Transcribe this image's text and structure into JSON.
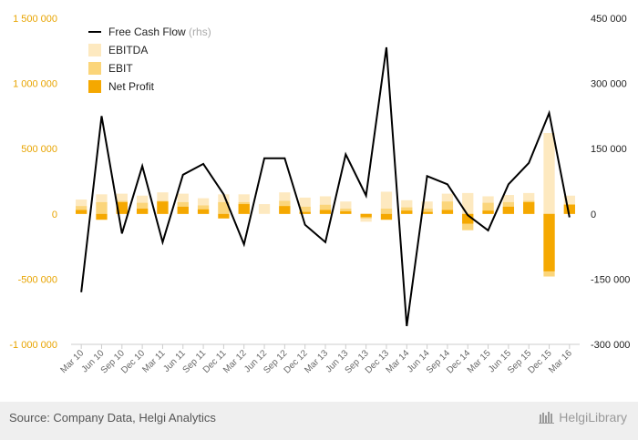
{
  "chart_data": {
    "type": "bar",
    "legend": {
      "placement": "top-left",
      "items": [
        {
          "name": "Free Cash Flow",
          "suffix": "(rhs)",
          "kind": "line",
          "color": "#000000"
        },
        {
          "name": "EBITDA",
          "kind": "bar",
          "color": "#fde9c0"
        },
        {
          "name": "EBIT",
          "kind": "bar",
          "color": "#fbd57a"
        },
        {
          "name": "Net Profit",
          "kind": "bar",
          "color": "#f5a800"
        }
      ]
    },
    "categories": [
      "Mar 10",
      "Jun 10",
      "Sep 10",
      "Dec 10",
      "Mar 11",
      "Jun 11",
      "Sep 11",
      "Dec 11",
      "Mar 12",
      "Jun 12",
      "Sep 12",
      "Dec 12",
      "Mar 13",
      "Jun 13",
      "Sep 13",
      "Dec 13",
      "Mar 14",
      "Jun 14",
      "Sep 14",
      "Dec 14",
      "Mar 15",
      "Jun 15",
      "Sep 15",
      "Dec 15",
      "Mar 16"
    ],
    "y_left": {
      "lim": [
        -1000000,
        1500000
      ],
      "ticks": [
        -1000000,
        -500000,
        0,
        500000,
        1000000,
        1500000
      ],
      "tick_labels": [
        "-1 000 000",
        "-500 000",
        "0",
        "500 000",
        "1 000 000",
        "1 500 000"
      ],
      "color": "#e8a400"
    },
    "y_right": {
      "lim": [
        -300000,
        450000
      ],
      "ticks": [
        -300000,
        -150000,
        0,
        150000,
        300000,
        450000
      ],
      "tick_labels": [
        "-300 000",
        "-150 000",
        "0",
        "150 000",
        "300 000",
        "450 000"
      ]
    },
    "grid": false,
    "series": [
      {
        "name": "EBITDA",
        "axis": "left",
        "color": "#fde9c0",
        "values": [
          110000,
          150000,
          155000,
          140000,
          165000,
          155000,
          120000,
          150000,
          150000,
          75000,
          165000,
          125000,
          135000,
          95000,
          -60000,
          170000,
          105000,
          95000,
          155000,
          160000,
          135000,
          145000,
          160000,
          620000,
          140000
        ]
      },
      {
        "name": "EBIT",
        "axis": "left",
        "color": "#fbd57a",
        "values": [
          60000,
          90000,
          100000,
          85000,
          100000,
          90000,
          65000,
          90000,
          90000,
          0,
          100000,
          55000,
          70000,
          40000,
          -35000,
          40000,
          50000,
          40000,
          95000,
          -125000,
          85000,
          90000,
          100000,
          -480000,
          75000
        ]
      },
      {
        "name": "Net Profit",
        "axis": "left",
        "color": "#f5a800",
        "values": [
          30000,
          -45000,
          90000,
          40000,
          95000,
          55000,
          35000,
          -35000,
          75000,
          0,
          60000,
          15000,
          30000,
          20000,
          -25000,
          -45000,
          25000,
          15000,
          30000,
          -75000,
          25000,
          55000,
          90000,
          -440000,
          70000
        ]
      },
      {
        "name": "Free Cash Flow",
        "axis": "right",
        "type": "line",
        "color": "#000000",
        "values": [
          -180000,
          225000,
          -45000,
          110000,
          -65000,
          90000,
          115000,
          45000,
          -70000,
          128000,
          128000,
          -25000,
          -65000,
          137000,
          42000,
          383000,
          -258000,
          87000,
          68000,
          -3000,
          -38000,
          68000,
          117000,
          232000,
          -8000
        ]
      }
    ]
  },
  "footer": {
    "source": "Source: Company Data, Helgi Analytics",
    "brand": "HelgiLibrary"
  }
}
